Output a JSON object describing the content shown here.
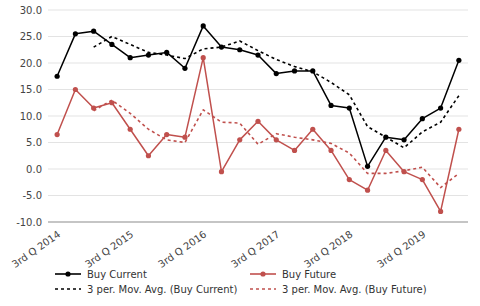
{
  "chart_data": {
    "type": "line",
    "categories": [
      "3rd Q 2014",
      null,
      null,
      null,
      "3rd Q 2015",
      null,
      null,
      null,
      "3rd Q 2016",
      null,
      null,
      null,
      "3rd Q 2017",
      null,
      null,
      null,
      "3rd Q 2018",
      null,
      null,
      null,
      "3rd Q 2019",
      null,
      null
    ],
    "series": [
      {
        "name": "Buy Current",
        "color": "#000000",
        "marker": "circle",
        "line_style": "solid",
        "values": [
          17.5,
          25.5,
          26.0,
          23.5,
          21.0,
          21.5,
          22.0,
          19.0,
          27.0,
          23.0,
          22.5,
          21.5,
          18.0,
          18.5,
          18.5,
          12.0,
          11.5,
          0.5,
          6.0,
          5.5,
          9.5,
          11.5,
          20.5
        ]
      },
      {
        "name": "Buy Future",
        "color": "#c0504d",
        "marker": "circle",
        "line_style": "solid",
        "values": [
          6.5,
          15.0,
          11.5,
          12.5,
          7.5,
          2.5,
          6.5,
          6.0,
          21.0,
          -0.5,
          5.5,
          9.0,
          5.5,
          3.5,
          7.5,
          3.5,
          -2.0,
          -4.0,
          3.5,
          -0.5,
          -2.0,
          -8.0,
          7.5
        ]
      },
      {
        "name": "3 per. Mov. Avg. (Buy Current)",
        "color": "#000000",
        "marker": "none",
        "line_style": "dotted",
        "values": [
          null,
          null,
          23.0,
          25.0,
          23.5,
          22.0,
          21.5,
          20.833333333333332,
          22.666666666666668,
          23.0,
          24.166666666666668,
          22.333333333333332,
          20.666666666666668,
          19.333333333333332,
          18.333333333333332,
          16.333333333333332,
          14.0,
          8.0,
          6.0,
          4.0,
          7.0,
          8.833333333333334,
          13.833333333333334
        ]
      },
      {
        "name": "3 per. Mov. Avg. (Buy Future)",
        "color": "#c0504d",
        "marker": "none",
        "line_style": "dotted",
        "values": [
          null,
          null,
          11.0,
          13.0,
          10.5,
          7.5,
          5.5,
          5.0,
          11.166666666666666,
          8.833333333333334,
          8.666666666666666,
          4.666666666666667,
          6.666666666666667,
          6.0,
          5.5,
          4.833333333333333,
          3.0,
          -0.8333333333333334,
          -0.8333333333333334,
          -0.3333333333333333,
          0.3333333333333333,
          -3.5,
          -0.8333333333333334
        ]
      }
    ],
    "ylim": [
      -10.0,
      30.0
    ],
    "yticks": [
      {
        "value": -10.0,
        "label": "-10.0"
      },
      {
        "value": -5.0,
        "label": "-5.0"
      },
      {
        "value": 0.0,
        "label": "0.0"
      },
      {
        "value": 5.0,
        "label": "5.0"
      },
      {
        "value": 10.0,
        "label": "10.0"
      },
      {
        "value": 15.0,
        "label": "15.0"
      },
      {
        "value": 20.0,
        "label": "20.0"
      },
      {
        "value": 25.0,
        "label": "25.0"
      },
      {
        "value": 30.0,
        "label": "30.0"
      }
    ],
    "grid": true,
    "legend": "bottom"
  }
}
